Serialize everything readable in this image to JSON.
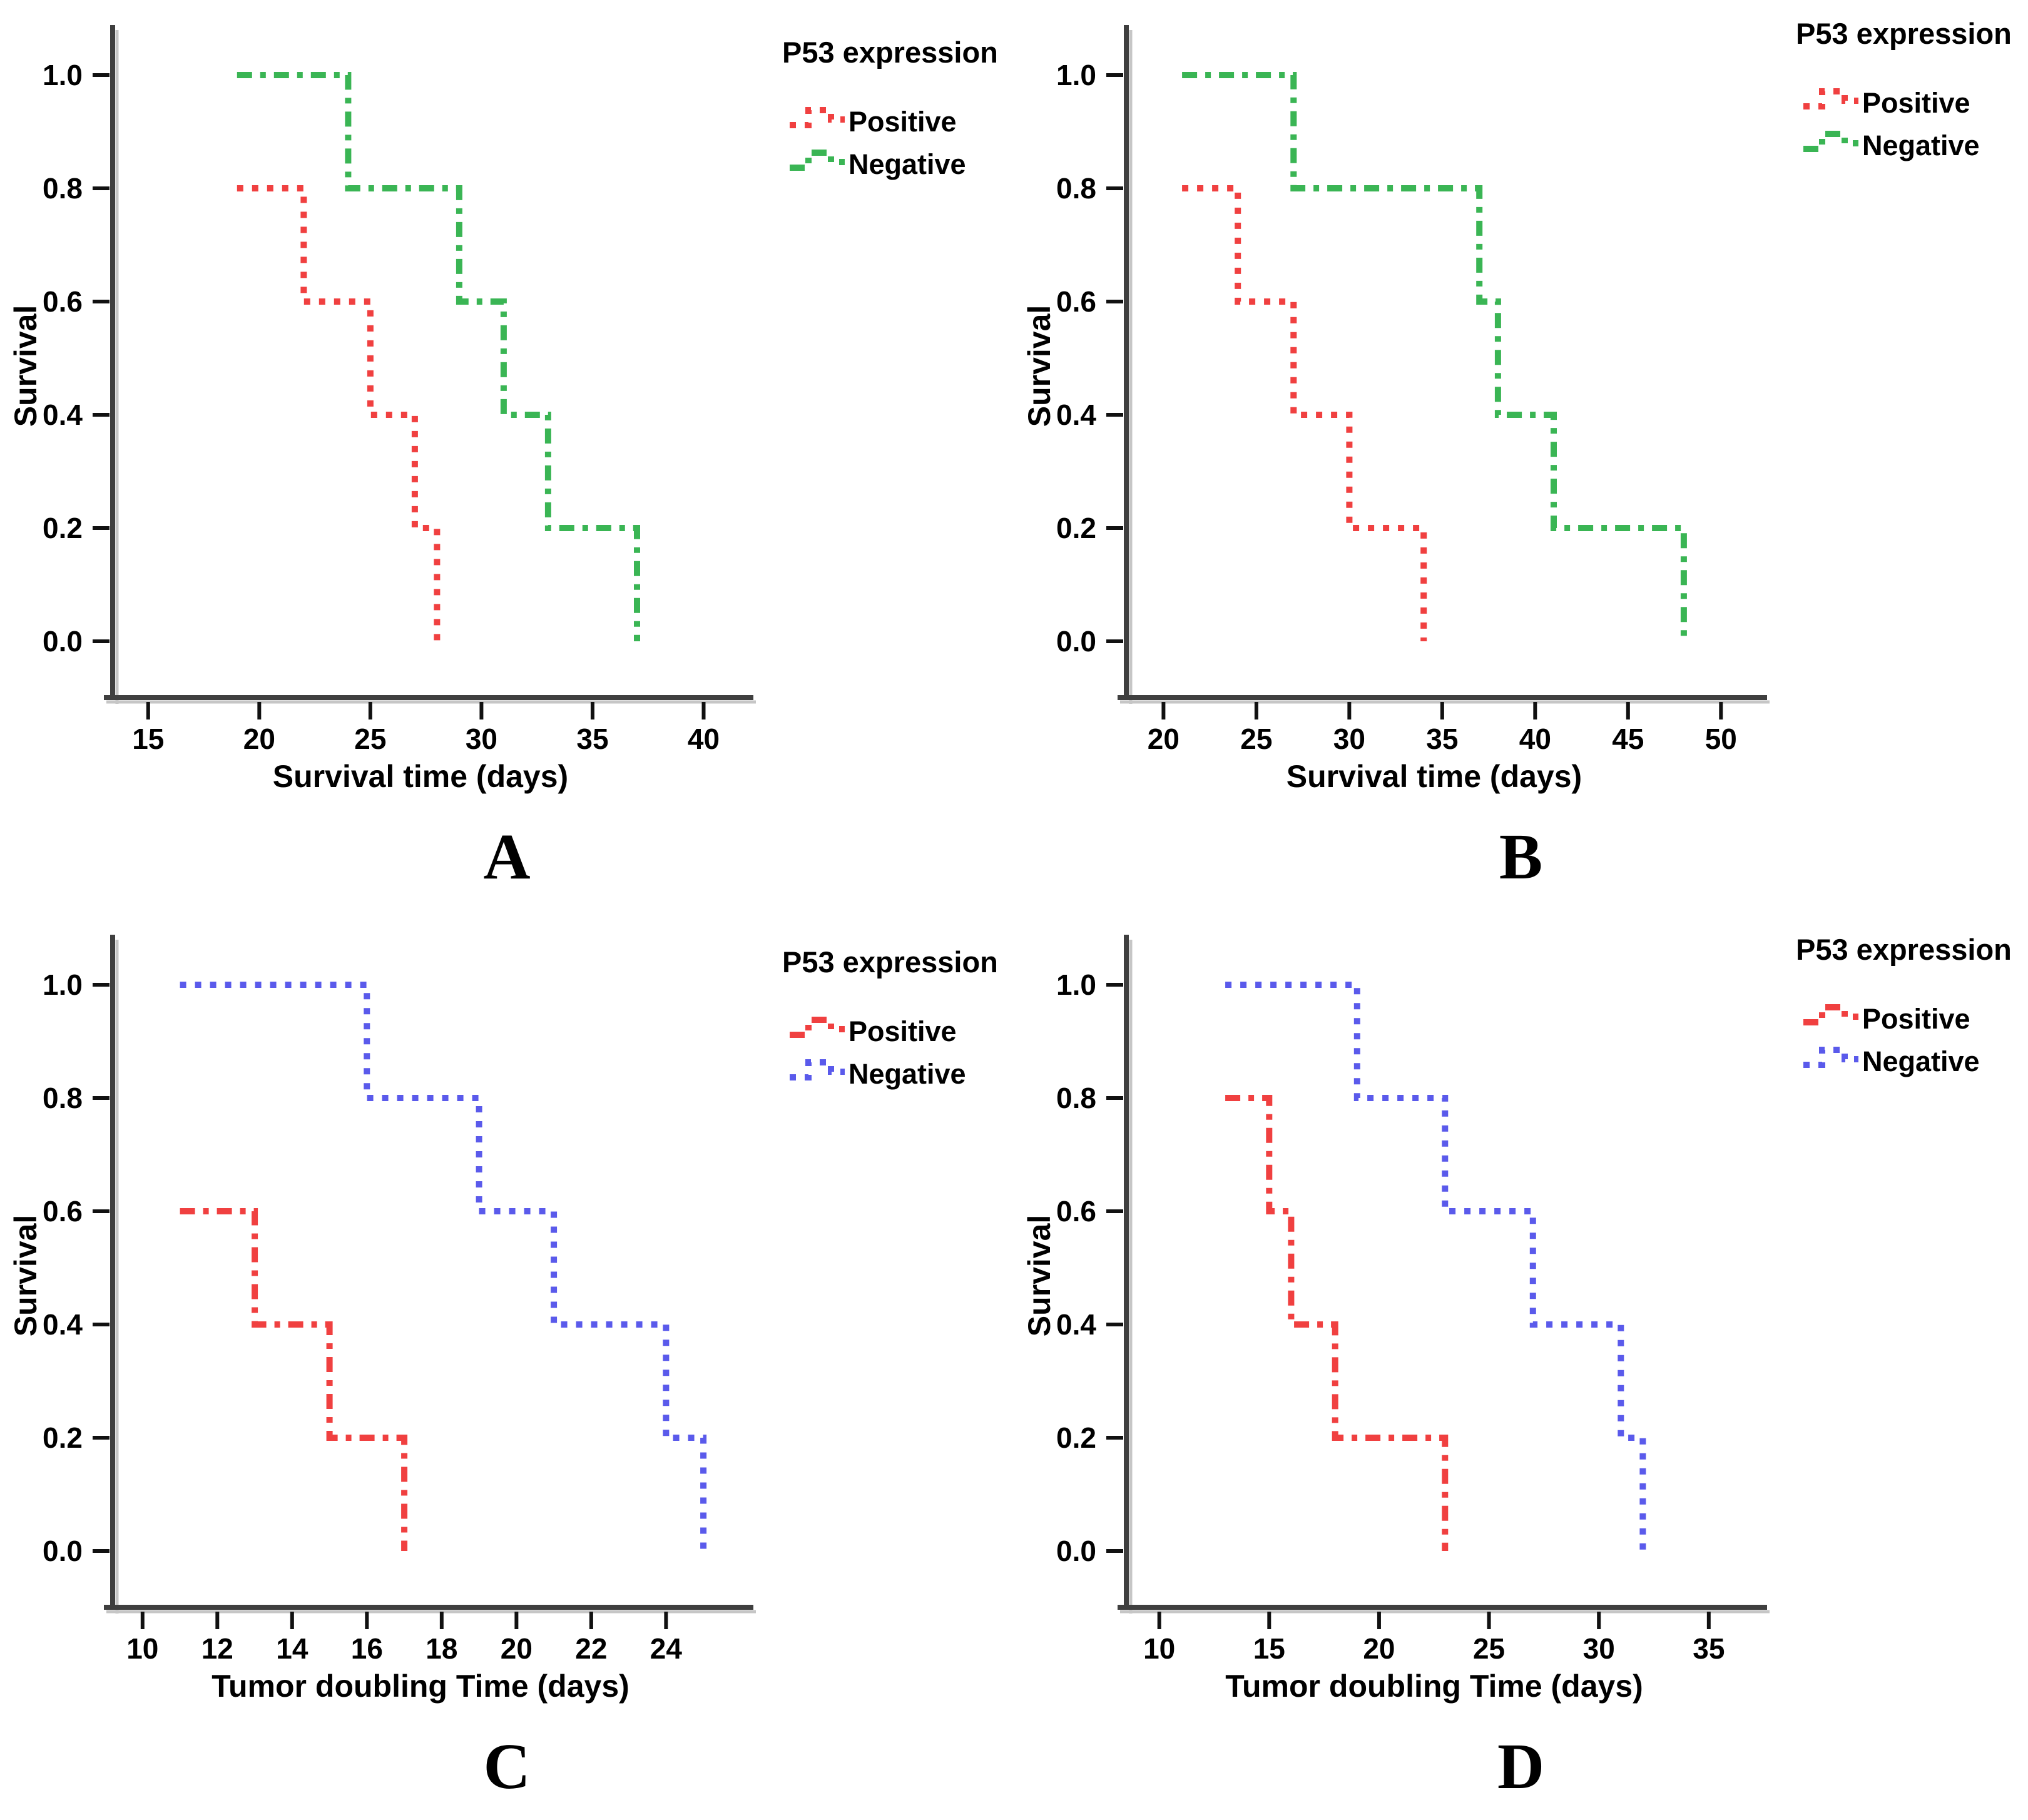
{
  "figure": {
    "background": "#ffffff",
    "panel_letters": [
      "A",
      "B",
      "C",
      "D"
    ]
  },
  "colors": {
    "positive_red": "#f04040",
    "negative_green": "#3ab554",
    "negative_blue": "#5a5aeb",
    "axis": "#3f3f3f",
    "axis_shadow": "#c6c6c6",
    "tick": "#111111",
    "text": "#000000"
  },
  "chart_data": [
    {
      "type": "line",
      "subtype": "kaplan-meier-step",
      "letter": "A",
      "title": "",
      "xlabel": "Survival time (days)",
      "ylabel": "Survival",
      "legend_title": "P53 expression",
      "legend_position": "top-right-outside",
      "grid": "off",
      "xlim": [
        13.4,
        41.0
      ],
      "ylim": [
        0.0,
        1.0
      ],
      "x_ticks": [
        15,
        20,
        25,
        30,
        35,
        40
      ],
      "y_ticks": [
        "0.0",
        "0.2",
        "0.4",
        "0.6",
        "0.8",
        "1.0"
      ],
      "series": [
        {
          "name": "Positive",
          "color": "#f04040",
          "dash": "dotted",
          "points": [
            [
              19,
              0.8
            ],
            [
              22,
              0.8
            ],
            [
              22,
              0.6
            ],
            [
              25,
              0.6
            ],
            [
              25,
              0.4
            ],
            [
              27,
              0.4
            ],
            [
              27,
              0.2
            ],
            [
              28,
              0.2
            ],
            [
              28,
              0.0
            ]
          ]
        },
        {
          "name": "Negative",
          "color": "#3ab554",
          "dash": "dashdot",
          "points": [
            [
              19,
              1.0
            ],
            [
              24,
              1.0
            ],
            [
              24,
              0.8
            ],
            [
              29,
              0.8
            ],
            [
              29,
              0.6
            ],
            [
              31,
              0.6
            ],
            [
              31,
              0.4
            ],
            [
              33,
              0.4
            ],
            [
              33,
              0.2
            ],
            [
              37,
              0.2
            ],
            [
              37,
              0.0
            ]
          ]
        }
      ]
    },
    {
      "type": "line",
      "subtype": "kaplan-meier-step",
      "letter": "B",
      "title": "",
      "xlabel": "Survival time (days)",
      "ylabel": "Survival",
      "legend_title": "P53 expression",
      "legend_position": "top-right-outside",
      "grid": "off",
      "xlim": [
        18.0,
        51.0
      ],
      "ylim": [
        0.0,
        1.0
      ],
      "x_ticks": [
        20,
        25,
        30,
        35,
        40,
        45,
        50
      ],
      "y_ticks": [
        "0.0",
        "0.2",
        "0.4",
        "0.6",
        "0.8",
        "1.0"
      ],
      "series": [
        {
          "name": "Positive",
          "color": "#f04040",
          "dash": "dotted",
          "points": [
            [
              21,
              0.8
            ],
            [
              24,
              0.8
            ],
            [
              24,
              0.6
            ],
            [
              27,
              0.6
            ],
            [
              27,
              0.4
            ],
            [
              30,
              0.4
            ],
            [
              30,
              0.2
            ],
            [
              34,
              0.2
            ],
            [
              34,
              0.0
            ]
          ]
        },
        {
          "name": "Negative",
          "color": "#3ab554",
          "dash": "dashdot",
          "points": [
            [
              21,
              1.0
            ],
            [
              27,
              1.0
            ],
            [
              27,
              0.8
            ],
            [
              37,
              0.8
            ],
            [
              37,
              0.6
            ],
            [
              38,
              0.6
            ],
            [
              38,
              0.4
            ],
            [
              41,
              0.4
            ],
            [
              41,
              0.2
            ],
            [
              48,
              0.2
            ],
            [
              48,
              0.0
            ]
          ]
        }
      ]
    },
    {
      "type": "line",
      "subtype": "kaplan-meier-step",
      "letter": "C",
      "title": "",
      "xlabel": "Tumor doubling Time (days)",
      "ylabel": "Survival",
      "legend_title": "P53 expression",
      "legend_position": "top-right-outside",
      "grid": "off",
      "xlim": [
        9.2,
        25.6
      ],
      "ylim": [
        0.0,
        1.0
      ],
      "x_ticks": [
        10,
        12,
        14,
        16,
        18,
        20,
        22,
        24
      ],
      "y_ticks": [
        "0.0",
        "0.2",
        "0.4",
        "0.6",
        "0.8",
        "1.0"
      ],
      "series": [
        {
          "name": "Positive",
          "color": "#f04040",
          "dash": "dashdot",
          "points": [
            [
              11,
              0.6
            ],
            [
              13,
              0.6
            ],
            [
              13,
              0.4
            ],
            [
              15,
              0.4
            ],
            [
              15,
              0.2
            ],
            [
              17,
              0.2
            ],
            [
              17,
              0.0
            ]
          ]
        },
        {
          "name": "Negative",
          "color": "#5a5aeb",
          "dash": "dotted",
          "points": [
            [
              11,
              1.0
            ],
            [
              16,
              1.0
            ],
            [
              16,
              0.8
            ],
            [
              19,
              0.8
            ],
            [
              19,
              0.6
            ],
            [
              21,
              0.6
            ],
            [
              21,
              0.4
            ],
            [
              24,
              0.4
            ],
            [
              24,
              0.2
            ],
            [
              25,
              0.2
            ],
            [
              25,
              0.0
            ]
          ]
        }
      ]
    },
    {
      "type": "line",
      "subtype": "kaplan-meier-step",
      "letter": "D",
      "title": "",
      "xlabel": "Tumor doubling Time (days)",
      "ylabel": "Survival",
      "legend_title": "P53 expression",
      "legend_position": "top-right-outside",
      "grid": "off",
      "xlim": [
        8.5,
        36.4
      ],
      "ylim": [
        0.0,
        1.0
      ],
      "x_ticks": [
        10,
        15,
        20,
        25,
        30,
        35
      ],
      "y_ticks": [
        "0.0",
        "0.2",
        "0.4",
        "0.6",
        "0.8",
        "1.0"
      ],
      "series": [
        {
          "name": "Positive",
          "color": "#f04040",
          "dash": "dashdot",
          "points": [
            [
              13,
              0.8
            ],
            [
              15,
              0.8
            ],
            [
              15,
              0.6
            ],
            [
              16,
              0.6
            ],
            [
              16,
              0.4
            ],
            [
              18,
              0.4
            ],
            [
              18,
              0.2
            ],
            [
              23,
              0.2
            ],
            [
              23,
              0.0
            ]
          ]
        },
        {
          "name": "Negative",
          "color": "#5a5aeb",
          "dash": "dotted",
          "points": [
            [
              13,
              1.0
            ],
            [
              19,
              1.0
            ],
            [
              19,
              0.8
            ],
            [
              23,
              0.8
            ],
            [
              23,
              0.6
            ],
            [
              27,
              0.6
            ],
            [
              27,
              0.4
            ],
            [
              31,
              0.4
            ],
            [
              31,
              0.2
            ],
            [
              32,
              0.2
            ],
            [
              32,
              0.0
            ]
          ]
        }
      ]
    }
  ]
}
